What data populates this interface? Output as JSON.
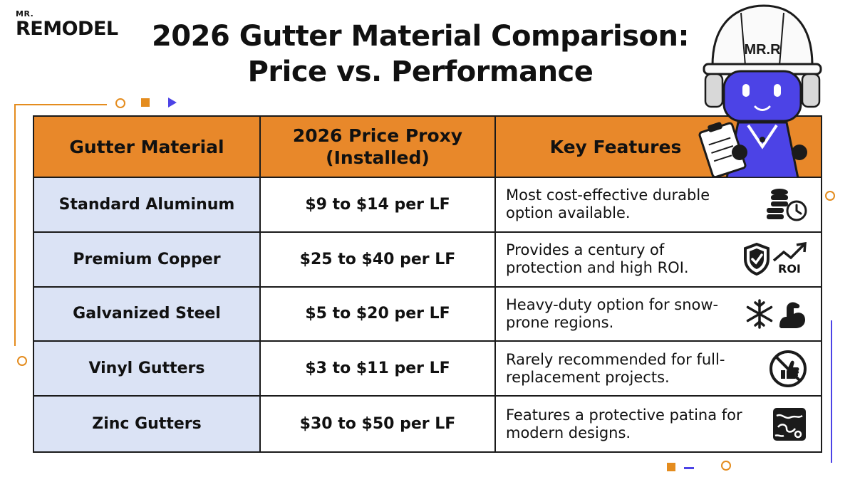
{
  "brand": {
    "small": "MR.",
    "word": "REMODEL"
  },
  "title": {
    "line1": "2026 Gutter Material Comparison:",
    "line2": "Price vs. Performance"
  },
  "mascot": {
    "helmet_text": "MR.R"
  },
  "table": {
    "headers": [
      "Gutter Material",
      "2026 Price Proxy (Installed)",
      "Key Features"
    ],
    "rows": [
      {
        "material": "Standard Aluminum",
        "price": "$9 to $14 per LF",
        "feature": "Most cost-effective durable option available.",
        "icons": [
          "coins-icon",
          "clock-icon"
        ]
      },
      {
        "material": "Premium Copper",
        "price": "$25 to $40 per LF",
        "feature": "Provides a century of protection and high ROI.",
        "icons": [
          "shield-check-icon",
          "roi-arrow-icon"
        ],
        "icon_text": "ROI"
      },
      {
        "material": "Galvanized Steel",
        "price": "$5 to $20 per LF",
        "feature": "Heavy-duty option for snow-prone regions.",
        "icons": [
          "snowflake-icon",
          "flexed-arm-icon"
        ]
      },
      {
        "material": "Vinyl Gutters",
        "price": "$3 to $11 per LF",
        "feature": "Rarely recommended for full-replacement projects.",
        "icons": [
          "no-thumbs-up-icon"
        ]
      },
      {
        "material": "Zinc Gutters",
        "price": "$30 to $50 per LF",
        "feature": "Features a protective patina for modern designs.",
        "icons": [
          "patina-texture-icon"
        ]
      }
    ]
  },
  "colors": {
    "header_orange": "#e8882a",
    "material_bg": "#dbe3f5",
    "accent_blue": "#4c43e6",
    "accent_orange": "#e48c1e"
  }
}
